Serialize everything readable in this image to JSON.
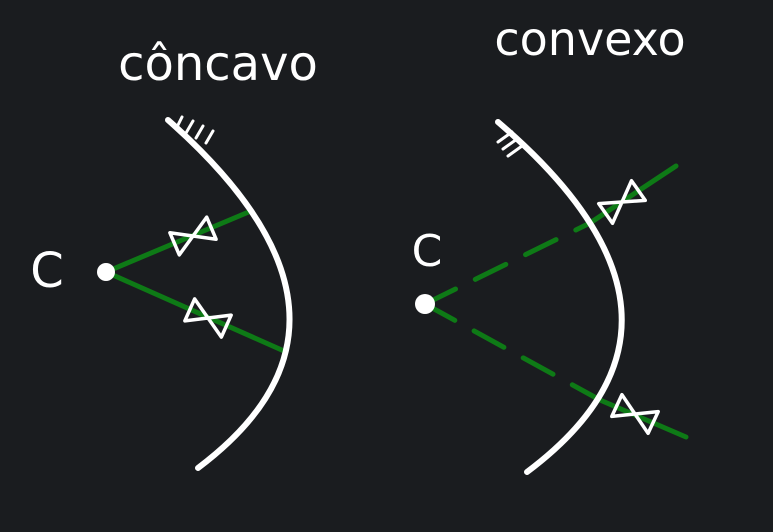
{
  "colors": {
    "background": "#1a1c1f",
    "ink": "#ffffff",
    "ray": "#0e7a16"
  },
  "concave": {
    "title": "côncavo",
    "center_label": "C"
  },
  "convex": {
    "title": "convexo",
    "center_label": "C"
  }
}
